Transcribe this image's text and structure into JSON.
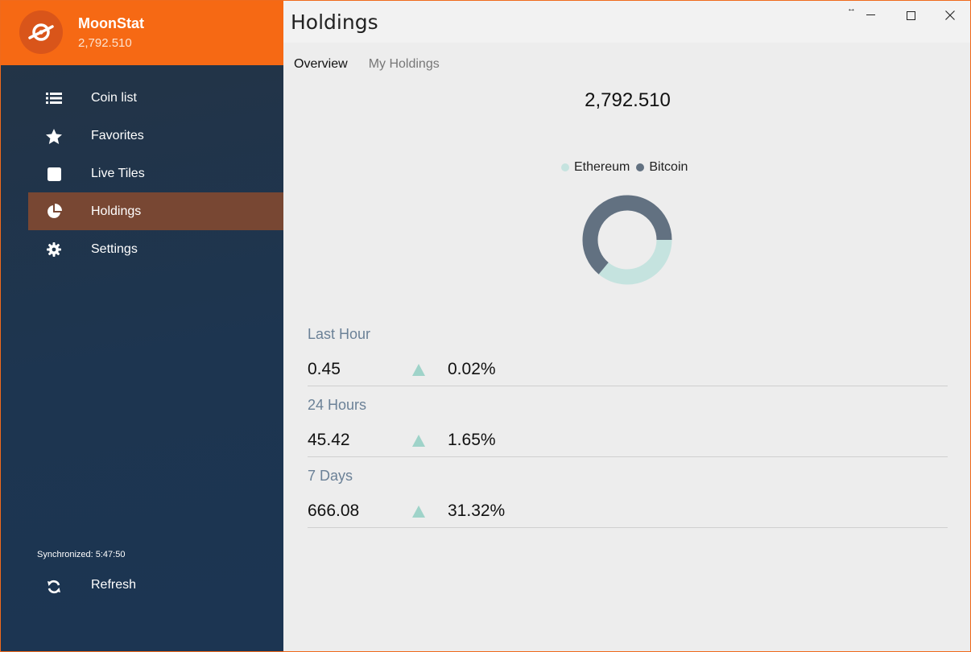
{
  "app": {
    "name": "MoonStat",
    "total": "2,792.510"
  },
  "sidebar": {
    "items": [
      {
        "label": "Coin list",
        "icon": "list-icon",
        "active": false
      },
      {
        "label": "Favorites",
        "icon": "star-icon",
        "active": false
      },
      {
        "label": "Live Tiles",
        "icon": "tile-icon",
        "active": false
      },
      {
        "label": "Holdings",
        "icon": "pie-chart-icon",
        "active": true
      },
      {
        "label": "Settings",
        "icon": "gear-icon",
        "active": false
      }
    ],
    "sync_text": "Synchronized: 5:47:50",
    "refresh_label": "Refresh"
  },
  "header": {
    "title": "Holdings",
    "resize_glyph": "↔"
  },
  "tabs": [
    {
      "label": "Overview",
      "active": true
    },
    {
      "label": "My Holdings",
      "active": false
    }
  ],
  "overview": {
    "total": "2,792.510",
    "legend": [
      {
        "name": "Ethereum",
        "color": "#c5e3df"
      },
      {
        "name": "Bitcoin",
        "color": "#627181"
      }
    ]
  },
  "chart_data": {
    "type": "pie",
    "categories": [
      "Ethereum",
      "Bitcoin"
    ],
    "values": [
      36,
      64
    ],
    "colors": [
      "#c5e3df",
      "#627181"
    ],
    "donut": true
  },
  "stats": [
    {
      "label": "Last Hour",
      "value": "0.45",
      "percent": "0.02%",
      "trend": "up"
    },
    {
      "label": "24 Hours",
      "value": "45.42",
      "percent": "1.65%",
      "trend": "up"
    },
    {
      "label": "7 Days",
      "value": "666.08",
      "percent": "31.32%",
      "trend": "up"
    }
  ],
  "colors": {
    "accent": "#f66914",
    "active_nav": "#784733",
    "trend_up": "#9fd3c9"
  }
}
